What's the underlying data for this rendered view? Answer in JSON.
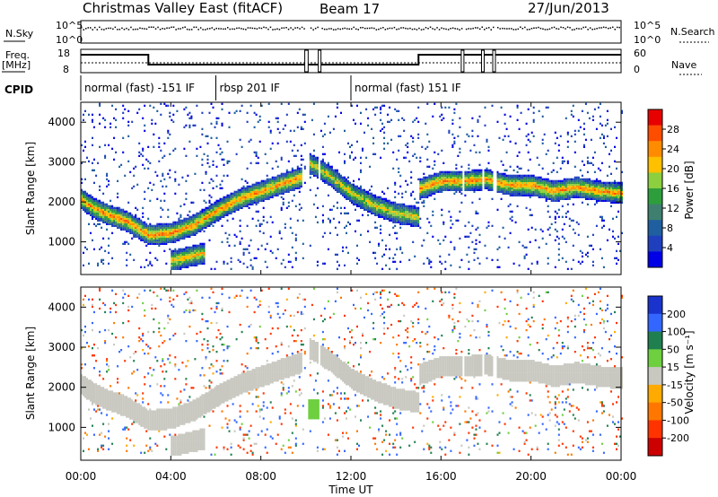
{
  "header": {
    "title": "Christmas Valley East (fitACF)",
    "beam": "Beam 17",
    "date": "27/Jun/2013"
  },
  "noise_panel": {
    "left_label": "N.Sky",
    "right_label": "N.Search",
    "ticks": [
      "10^5",
      "10^0"
    ]
  },
  "freq_panel": {
    "left_label_line1": "Freq.",
    "left_label_line2": "[MHz]",
    "left_ticks": [
      "18",
      "8"
    ],
    "right_label": "Nave",
    "right_ticks": [
      "60",
      "0"
    ]
  },
  "cpid": {
    "label": "CPID",
    "segments": [
      {
        "label": "normal (fast) -151 IF",
        "start_h": 0.0,
        "end_h": 6.0
      },
      {
        "label": "rbsp 201 IF",
        "start_h": 6.0,
        "end_h": 12.0
      },
      {
        "label": "normal (fast) 151 IF",
        "start_h": 12.0,
        "end_h": 24.0
      }
    ]
  },
  "axes": {
    "ylabel": "Slant Range [km]",
    "xlabel": "Time UT",
    "x_ticks": [
      "00:00",
      "04:00",
      "08:00",
      "12:00",
      "16:00",
      "20:00",
      "00:00"
    ],
    "y_ticks": [
      "1000",
      "2000",
      "3000",
      "4000"
    ]
  },
  "power_scale": {
    "label": "Power [dB]",
    "ticks": [
      "28",
      "24",
      "20",
      "16",
      "12",
      "8",
      "4"
    ],
    "colors": [
      "#e60000",
      "#ff4d00",
      "#ff8c00",
      "#ffc000",
      "#8ccf3f",
      "#2e9e3c",
      "#3f7f6f",
      "#1f5f9f",
      "#1f3fbf",
      "#0000e6"
    ]
  },
  "velocity_scale": {
    "label": "Velocity [m s⁻¹]",
    "ticks": [
      "200",
      "100",
      "50",
      "15",
      "-15",
      "-50",
      "-100",
      "-200"
    ],
    "colors": [
      "#1a33cc",
      "#3366ff",
      "#1f7f4f",
      "#6ecf3f",
      "#c8c8c0",
      "#ffaa00",
      "#ff7700",
      "#ff3300",
      "#cc0000"
    ]
  },
  "chart_data": {
    "type": "heatmap",
    "title": "Christmas Valley East (fitACF)",
    "subtitle": "Beam 17   27/Jun/2013",
    "xlabel": "Time UT",
    "ylabel": "Slant Range [km]",
    "xlim_hours": [
      0,
      24
    ],
    "ylim_km": [
      180,
      4500
    ],
    "grid": false,
    "panels": [
      {
        "name": "Power",
        "units": "dB",
        "color_range": [
          0,
          30
        ],
        "features": [
          {
            "desc": "main F-region band",
            "time_h": [
              0,
              0.5,
              1,
              2,
              3,
              4,
              5,
              6,
              7,
              8,
              9,
              9.8
            ],
            "range_km": [
              2050,
              1850,
              1700,
              1500,
              1150,
              1200,
              1400,
              1750,
              2050,
              2250,
              2450,
              2600
            ],
            "power_db": 22
          },
          {
            "desc": "descending band after 12 UT",
            "time_h": [
              10.0,
              11,
              12,
              13,
              14,
              15
            ],
            "range_km": [
              3000,
              2650,
              2200,
              1900,
              1700,
              1600
            ],
            "power_db": 18
          },
          {
            "desc": "post 15 UT band",
            "time_h": [
              15.0,
              16,
              17,
              18,
              19,
              20,
              21,
              22,
              23,
              24
            ],
            "range_km": [
              2300,
              2500,
              2500,
              2550,
              2400,
              2400,
              2250,
              2350,
              2250,
              2200
            ],
            "power_db": 22
          },
          {
            "desc": "near-range ground echo",
            "time_h": [
              4.0,
              5.5
            ],
            "range_km": [
              500,
              700
            ],
            "power_db": 20
          }
        ]
      },
      {
        "name": "Velocity",
        "units": "m s^-1",
        "color_range": [
          -200,
          200
        ],
        "features": [
          {
            "desc": "low velocity main band",
            "time_h": [
              0,
              24
            ],
            "velocity": 0
          },
          {
            "desc": "positive patch near 10 UT",
            "time_h": [
              10.1,
              10.6
            ],
            "range_km": [
              1200,
              1700
            ],
            "velocity": 40
          },
          {
            "desc": "negative near-range returns",
            "time_h": [
              12,
              15
            ],
            "range_km": [
              180,
              500
            ],
            "velocity": -60
          }
        ]
      }
    ]
  }
}
